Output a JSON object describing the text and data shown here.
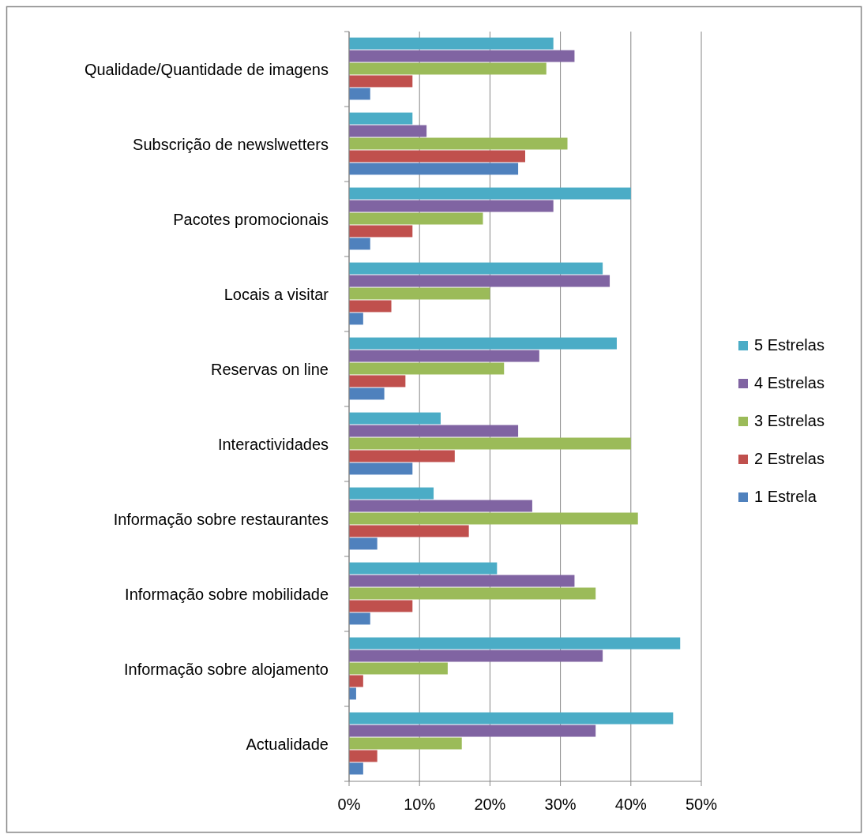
{
  "chart_data": {
    "type": "bar",
    "orientation": "horizontal",
    "categories": [
      "Qualidade/Quantidade de imagens",
      "Subscrição de newslwetters",
      "Pacotes promocionais",
      "Locais a visitar",
      "Reservas on line",
      "Interactividades",
      "Informação sobre restaurantes",
      "Informação sobre mobilidade",
      "Informação sobre alojamento",
      "Actualidade"
    ],
    "series": [
      {
        "name": "5 Estrelas",
        "color": "#4bacc6",
        "values": [
          29,
          9,
          40,
          36,
          38,
          13,
          12,
          21,
          47,
          46
        ]
      },
      {
        "name": "4 Estrelas",
        "color": "#8064a2",
        "values": [
          32,
          11,
          29,
          37,
          27,
          24,
          26,
          32,
          36,
          35
        ]
      },
      {
        "name": "3 Estrelas",
        "color": "#9bbb59",
        "values": [
          28,
          31,
          19,
          20,
          22,
          40,
          41,
          35,
          14,
          16
        ]
      },
      {
        "name": "2 Estrelas",
        "color": "#c0504d",
        "values": [
          9,
          25,
          9,
          6,
          8,
          15,
          17,
          9,
          2,
          4
        ]
      },
      {
        "name": "1 Estrela",
        "color": "#4f81bd",
        "values": [
          3,
          24,
          3,
          2,
          5,
          9,
          4,
          3,
          1,
          2
        ]
      }
    ],
    "xlim": [
      0,
      50
    ],
    "xticks": [
      {
        "value": 0,
        "label": "0%"
      },
      {
        "value": 10,
        "label": "10%"
      },
      {
        "value": 20,
        "label": "20%"
      },
      {
        "value": 30,
        "label": "30%"
      },
      {
        "value": 40,
        "label": "40%"
      },
      {
        "value": 50,
        "label": "50%"
      }
    ],
    "grid": "x",
    "legend": "right"
  }
}
